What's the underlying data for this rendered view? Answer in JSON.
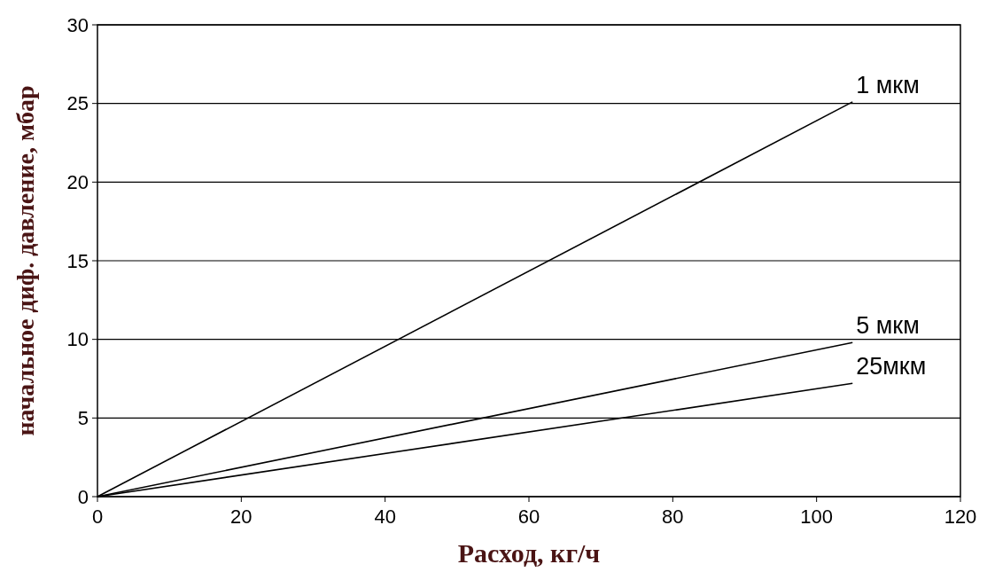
{
  "chart_data": {
    "type": "line",
    "xlabel": "Расход, кг/ч",
    "ylabel": "начальное диф. давление, мбар",
    "xlim": [
      0,
      120
    ],
    "xticks": [
      0,
      20,
      40,
      60,
      80,
      100,
      120
    ],
    "ylim": [
      0,
      30
    ],
    "yticks": [
      0,
      5,
      10,
      15,
      20,
      25,
      30
    ],
    "grid": "y",
    "legend": false,
    "marker": "none",
    "line_style": "solid",
    "x": [
      0,
      105
    ],
    "series": [
      {
        "name": "1 мкм",
        "color": "#000000",
        "values": [
          0,
          25.1
        ]
      },
      {
        "name": "5 мкм",
        "color": "#000000",
        "values": [
          0,
          9.8
        ]
      },
      {
        "name": "25мкм",
        "color": "#000000",
        "values": [
          0,
          7.2
        ]
      }
    ]
  }
}
